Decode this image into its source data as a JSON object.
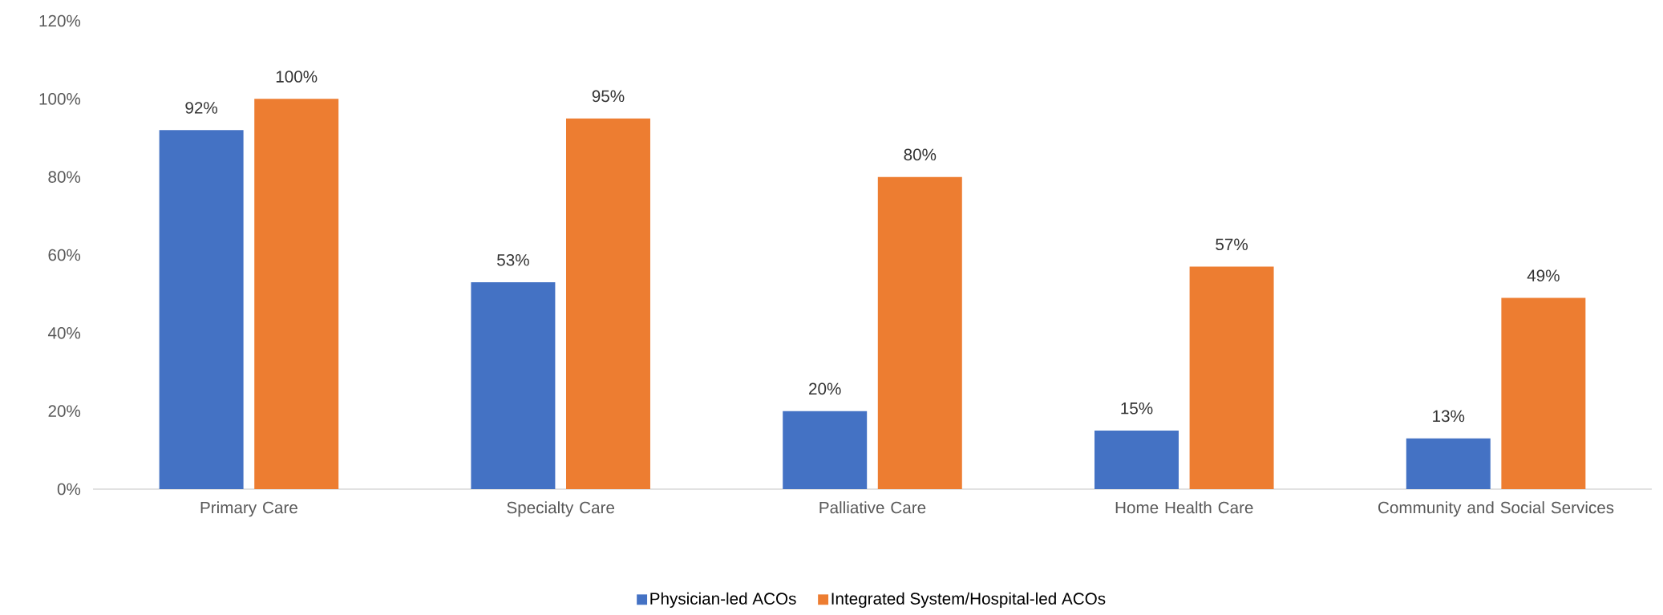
{
  "chart_data": {
    "type": "bar",
    "categories": [
      "Primary Care",
      "Specialty Care",
      "Palliative Care",
      "Home Health Care",
      "Community and Social Services"
    ],
    "series": [
      {
        "name": "Physician-led ACOs",
        "color": "#4472c4",
        "values": [
          92,
          53,
          20,
          15,
          13
        ],
        "value_labels": [
          "92%",
          "53%",
          "20%",
          "15%",
          "13%"
        ]
      },
      {
        "name": "Integrated System/Hospital-led ACOs",
        "color": "#ed7d31",
        "values": [
          100,
          95,
          80,
          57,
          49
        ],
        "value_labels": [
          "100%",
          "95%",
          "80%",
          "57%",
          "49%"
        ]
      }
    ],
    "ylim": [
      0,
      120
    ],
    "yticks": [
      {
        "value": 0,
        "label": "0%"
      },
      {
        "value": 20,
        "label": "20%"
      },
      {
        "value": 40,
        "label": "40%"
      },
      {
        "value": 60,
        "label": "60%"
      },
      {
        "value": 80,
        "label": "80%"
      },
      {
        "value": 100,
        "label": "100%"
      },
      {
        "value": 120,
        "label": "120%"
      }
    ],
    "legend": "bottom"
  }
}
